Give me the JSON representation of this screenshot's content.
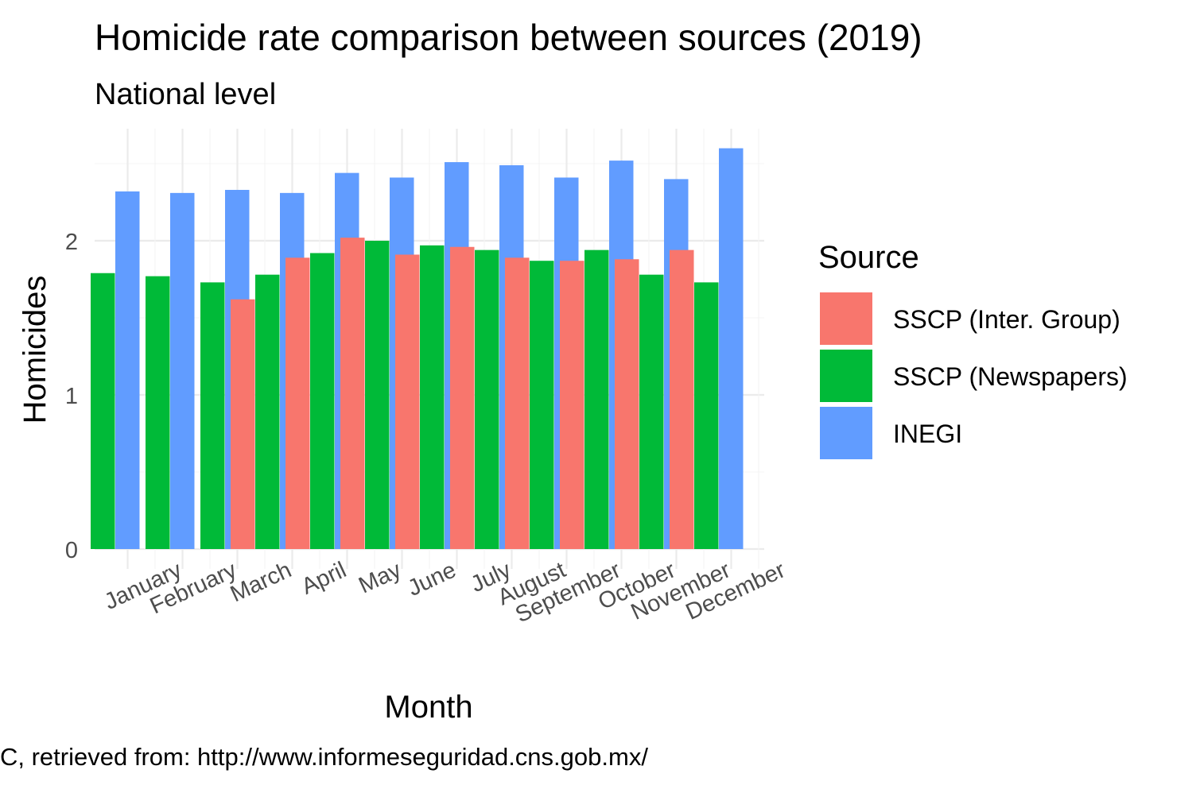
{
  "chart_data": {
    "type": "bar",
    "title": "Homicide rate comparison between sources (2019)",
    "subtitle": "National level",
    "xlabel": "Month",
    "ylabel": "Homicides",
    "caption": "C, retrieved from: http://www.informeseguridad.cns.gob.mx/",
    "categories": [
      "January",
      "February",
      "March",
      "April",
      "May",
      "June",
      "July",
      "August",
      "September",
      "October",
      "November",
      "December"
    ],
    "ylim": [
      0,
      2.6
    ],
    "yticks": [
      0,
      1,
      2
    ],
    "grid": true,
    "legend": {
      "title": "Source",
      "position": "right"
    },
    "series": [
      {
        "name": "SSCP (Inter. Group)",
        "color": "#F8766D",
        "values": [
          null,
          null,
          null,
          1.62,
          1.89,
          2.02,
          1.91,
          1.96,
          1.89,
          1.87,
          1.88,
          1.94
        ]
      },
      {
        "name": "SSCP (Newspapers)",
        "color": "#00BA38",
        "values": [
          1.79,
          1.77,
          1.73,
          1.78,
          1.92,
          2.0,
          1.97,
          1.94,
          1.87,
          1.94,
          1.78,
          1.73
        ]
      },
      {
        "name": "INEGI",
        "color": "#619CFF",
        "values": [
          2.32,
          2.31,
          2.33,
          2.31,
          2.44,
          2.41,
          2.51,
          2.49,
          2.41,
          2.52,
          2.4,
          2.6
        ]
      }
    ]
  }
}
